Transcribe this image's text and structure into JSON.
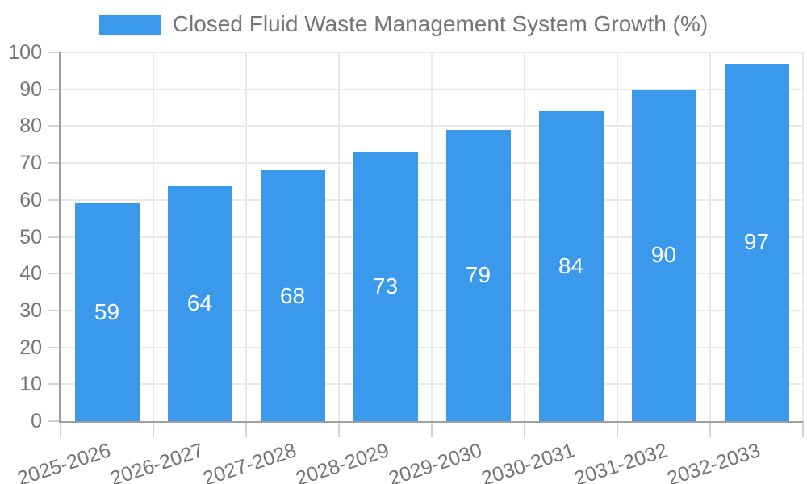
{
  "chart_data": {
    "type": "bar",
    "title": "Closed Fluid Waste Management System Growth (%)",
    "categories": [
      "2025-2026",
      "2026-2027",
      "2027-2028",
      "2028-2029",
      "2029-2030",
      "2030-2031",
      "2031-2032",
      "2032-2033"
    ],
    "series": [
      {
        "name": "Closed Fluid Waste Management System Growth (%)",
        "values": [
          59,
          64,
          68,
          73,
          79,
          84,
          90,
          97
        ]
      }
    ],
    "values": [
      59,
      64,
      68,
      73,
      79,
      84,
      90,
      97
    ],
    "xlabel": "",
    "ylabel": "",
    "ylim": [
      0,
      100
    ],
    "y_tick_step": 10,
    "y_tick_labels": [
      "0",
      "10",
      "20",
      "30",
      "40",
      "50",
      "60",
      "70",
      "80",
      "90",
      "100"
    ],
    "grid": true,
    "legend_position": "top",
    "value_labels": "inside-center",
    "colors": {
      "bar": "#3b99ec",
      "bar_value_text": "#ffffff",
      "axis_text": "#757575",
      "gridline": "#e9e9e9",
      "tick": "#d2d2d2",
      "axis_line": "#9f9f9f",
      "background": "#ffffff"
    }
  }
}
